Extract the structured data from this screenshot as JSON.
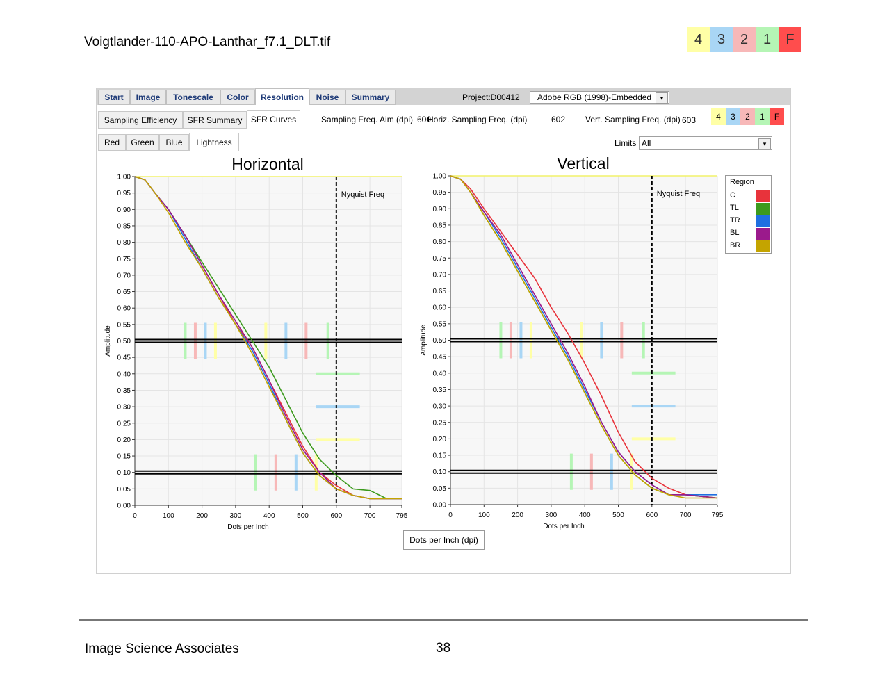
{
  "document": {
    "title": "Voigtlander-110-APO-Lanthar_f7.1_DLT.tif",
    "footer_left": "Image Science Associates",
    "page_number": "38"
  },
  "grades": [
    {
      "label": "4",
      "color": "#ffffa6"
    },
    {
      "label": "3",
      "color": "#a9d6f5"
    },
    {
      "label": "2",
      "color": "#f7b8b8"
    },
    {
      "label": "1",
      "color": "#b5f5b5"
    },
    {
      "label": "F",
      "color": "#ff4d4d"
    }
  ],
  "toolbar": {
    "main_tabs": [
      "Start",
      "Image",
      "Tonescale",
      "Color",
      "Resolution",
      "Noise",
      "Summary"
    ],
    "active_main_tab": "Resolution",
    "project_label": "Project:D00412",
    "profile_value": "Adobe RGB (1998)-Embedded",
    "sub_tabs": [
      "Sampling Efficiency",
      "SFR Summary",
      "SFR Curves"
    ],
    "active_sub_tab": "SFR Curves",
    "sampling_aim_label": "Sampling Freq. Aim (dpi)",
    "sampling_aim_value": "600",
    "horiz_label": "Horiz. Sampling Freq. (dpi)",
    "horiz_value": "602",
    "vert_label": "Vert. Sampling Freq. (dpi)",
    "vert_value": "603",
    "channel_tabs": [
      "Red",
      "Green",
      "Blue",
      "Lightness"
    ],
    "active_channel_tab": "Lightness",
    "limits_label": "Limits",
    "limits_value": "All",
    "x_unit_button": "Dots per Inch (dpi)"
  },
  "legend": {
    "title": "Region",
    "items": [
      {
        "name": "C",
        "color": "#e8333b"
      },
      {
        "name": "TL",
        "color": "#3c9a1d"
      },
      {
        "name": "TR",
        "color": "#1f6fe0"
      },
      {
        "name": "BL",
        "color": "#9b1a8c"
      },
      {
        "name": "BR",
        "color": "#c4a400"
      }
    ]
  },
  "chart_data": [
    {
      "type": "line",
      "title": "Horizontal",
      "xlabel": "Dots per Inch",
      "ylabel": "Amplitude",
      "xlim": [
        0,
        795
      ],
      "ylim": [
        0,
        1
      ],
      "x_ticks": [
        0,
        100,
        200,
        300,
        400,
        500,
        600,
        700,
        795
      ],
      "y_ticks": [
        "0.00",
        "0.05",
        "0.10",
        "0.15",
        "0.20",
        "0.25",
        "0.30",
        "0.35",
        "0.40",
        "0.45",
        "0.50",
        "0.55",
        "0.60",
        "0.65",
        "0.70",
        "0.75",
        "0.80",
        "0.85",
        "0.90",
        "0.95",
        "1.00"
      ],
      "nyquist": {
        "x": 600,
        "label": "Nyquist Freq"
      },
      "reference_lines": [
        0.5,
        0.1
      ],
      "grade_markers_50": [
        {
          "x": 150,
          "color": "#b5f5b5"
        },
        {
          "x": 180,
          "color": "#f7b8b8"
        },
        {
          "x": 210,
          "color": "#a9d6f5"
        },
        {
          "x": 240,
          "color": "#ffffa6"
        },
        {
          "x": 390,
          "color": "#ffffa6"
        },
        {
          "x": 450,
          "color": "#a9d6f5"
        },
        {
          "x": 510,
          "color": "#f7b8b8"
        },
        {
          "x": 575,
          "color": "#b5f5b5"
        }
      ],
      "grade_markers_10": [
        {
          "x": 360,
          "color": "#b5f5b5"
        },
        {
          "x": 420,
          "color": "#f7b8b8"
        },
        {
          "x": 480,
          "color": "#a9d6f5"
        },
        {
          "x": 540,
          "color": "#ffffa6"
        }
      ],
      "aliasing_markers": [
        {
          "y": 0.4,
          "color": "#b5f5b5"
        },
        {
          "y": 0.3,
          "color": "#a9d6f5"
        },
        {
          "y": 0.2,
          "color": "#ffffa6"
        }
      ],
      "series": [
        {
          "name": "C",
          "color": "#e8333b",
          "x": [
            0,
            30,
            60,
            100,
            150,
            200,
            250,
            300,
            330,
            350,
            380,
            400,
            450,
            500,
            550,
            600,
            650,
            700,
            795
          ],
          "y": [
            1.0,
            0.99,
            0.95,
            0.9,
            0.82,
            0.73,
            0.64,
            0.55,
            0.51,
            0.48,
            0.42,
            0.38,
            0.28,
            0.18,
            0.1,
            0.06,
            0.03,
            0.02,
            0.02
          ]
        },
        {
          "name": "TL",
          "color": "#3c9a1d",
          "x": [
            0,
            30,
            60,
            100,
            150,
            200,
            250,
            300,
            350,
            400,
            450,
            500,
            550,
            600,
            650,
            700,
            750,
            795
          ],
          "y": [
            1.0,
            0.99,
            0.95,
            0.9,
            0.82,
            0.74,
            0.66,
            0.58,
            0.5,
            0.42,
            0.32,
            0.22,
            0.14,
            0.09,
            0.05,
            0.045,
            0.02,
            0.02
          ]
        },
        {
          "name": "TR",
          "color": "#1f6fe0",
          "x": [
            0,
            30,
            60,
            100,
            150,
            200,
            250,
            300,
            350,
            400,
            450,
            500,
            550,
            600,
            650,
            700,
            795
          ],
          "y": [
            1.0,
            0.99,
            0.95,
            0.9,
            0.81,
            0.72,
            0.63,
            0.55,
            0.47,
            0.37,
            0.26,
            0.16,
            0.09,
            0.05,
            0.03,
            0.02,
            0.02
          ]
        },
        {
          "name": "BL",
          "color": "#9b1a8c",
          "x": [
            0,
            30,
            60,
            100,
            150,
            200,
            250,
            300,
            350,
            400,
            450,
            500,
            550,
            600,
            650,
            700,
            795
          ],
          "y": [
            1.0,
            0.99,
            0.95,
            0.9,
            0.82,
            0.73,
            0.64,
            0.56,
            0.48,
            0.38,
            0.27,
            0.17,
            0.1,
            0.05,
            0.03,
            0.02,
            0.02
          ]
        },
        {
          "name": "BR",
          "color": "#c4a400",
          "x": [
            0,
            30,
            60,
            100,
            150,
            200,
            250,
            300,
            350,
            400,
            450,
            500,
            550,
            600,
            650,
            700,
            795
          ],
          "y": [
            1.0,
            0.99,
            0.95,
            0.89,
            0.8,
            0.72,
            0.63,
            0.55,
            0.46,
            0.36,
            0.26,
            0.16,
            0.09,
            0.05,
            0.03,
            0.02,
            0.02
          ]
        }
      ]
    },
    {
      "type": "line",
      "title": "Vertical",
      "xlabel": "Dots per Inch",
      "ylabel": "Amplitude",
      "xlim": [
        0,
        795
      ],
      "ylim": [
        0,
        1
      ],
      "x_ticks": [
        0,
        100,
        200,
        300,
        400,
        500,
        600,
        700,
        795
      ],
      "y_ticks": [
        "0.00",
        "0.05",
        "0.10",
        "0.15",
        "0.20",
        "0.25",
        "0.30",
        "0.35",
        "0.40",
        "0.45",
        "0.50",
        "0.55",
        "0.60",
        "0.65",
        "0.70",
        "0.75",
        "0.80",
        "0.85",
        "0.90",
        "0.95",
        "1.00"
      ],
      "nyquist": {
        "x": 600,
        "label": "Nyquist Freq"
      },
      "reference_lines": [
        0.5,
        0.1
      ],
      "grade_markers_50": [
        {
          "x": 150,
          "color": "#b5f5b5"
        },
        {
          "x": 180,
          "color": "#f7b8b8"
        },
        {
          "x": 210,
          "color": "#a9d6f5"
        },
        {
          "x": 240,
          "color": "#ffffa6"
        },
        {
          "x": 390,
          "color": "#ffffa6"
        },
        {
          "x": 450,
          "color": "#a9d6f5"
        },
        {
          "x": 510,
          "color": "#f7b8b8"
        },
        {
          "x": 575,
          "color": "#b5f5b5"
        }
      ],
      "grade_markers_10": [
        {
          "x": 360,
          "color": "#b5f5b5"
        },
        {
          "x": 420,
          "color": "#f7b8b8"
        },
        {
          "x": 480,
          "color": "#a9d6f5"
        },
        {
          "x": 540,
          "color": "#ffffa6"
        }
      ],
      "aliasing_markers": [
        {
          "y": 0.4,
          "color": "#b5f5b5"
        },
        {
          "y": 0.3,
          "color": "#a9d6f5"
        },
        {
          "y": 0.2,
          "color": "#ffffa6"
        }
      ],
      "series": [
        {
          "name": "C",
          "color": "#e8333b",
          "x": [
            0,
            30,
            60,
            100,
            150,
            200,
            250,
            300,
            350,
            400,
            450,
            500,
            550,
            600,
            650,
            700,
            795
          ],
          "y": [
            1.0,
            0.99,
            0.96,
            0.9,
            0.83,
            0.76,
            0.69,
            0.6,
            0.52,
            0.43,
            0.33,
            0.22,
            0.13,
            0.08,
            0.05,
            0.03,
            0.02
          ]
        },
        {
          "name": "TL",
          "color": "#3c9a1d",
          "x": [
            0,
            30,
            60,
            100,
            150,
            200,
            250,
            300,
            350,
            400,
            450,
            500,
            550,
            600,
            650,
            700,
            795
          ],
          "y": [
            1.0,
            0.99,
            0.95,
            0.88,
            0.8,
            0.71,
            0.62,
            0.53,
            0.44,
            0.34,
            0.24,
            0.15,
            0.09,
            0.05,
            0.03,
            0.03,
            0.02
          ]
        },
        {
          "name": "TR",
          "color": "#1f6fe0",
          "x": [
            0,
            30,
            60,
            100,
            150,
            200,
            250,
            300,
            350,
            400,
            450,
            500,
            550,
            600,
            650,
            700,
            795
          ],
          "y": [
            1.0,
            0.99,
            0.95,
            0.89,
            0.81,
            0.72,
            0.63,
            0.54,
            0.45,
            0.35,
            0.25,
            0.16,
            0.1,
            0.06,
            0.03,
            0.03,
            0.03
          ]
        },
        {
          "name": "BL",
          "color": "#9b1a8c",
          "x": [
            0,
            30,
            60,
            100,
            150,
            200,
            250,
            300,
            350,
            400,
            450,
            500,
            550,
            600,
            650,
            700,
            795
          ],
          "y": [
            1.0,
            0.99,
            0.95,
            0.89,
            0.82,
            0.73,
            0.64,
            0.55,
            0.46,
            0.36,
            0.25,
            0.16,
            0.1,
            0.06,
            0.03,
            0.03,
            0.02
          ]
        },
        {
          "name": "BR",
          "color": "#c4a400",
          "x": [
            0,
            30,
            60,
            100,
            150,
            200,
            250,
            300,
            350,
            400,
            450,
            500,
            550,
            600,
            650,
            700,
            795
          ],
          "y": [
            1.0,
            0.99,
            0.95,
            0.88,
            0.8,
            0.71,
            0.62,
            0.53,
            0.44,
            0.34,
            0.24,
            0.15,
            0.09,
            0.05,
            0.03,
            0.02,
            0.02
          ]
        }
      ]
    }
  ]
}
